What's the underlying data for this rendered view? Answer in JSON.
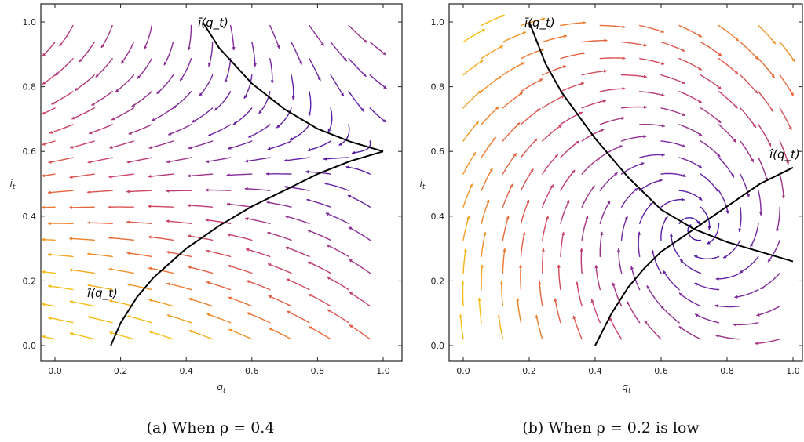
{
  "chart_data": [
    {
      "type": "streamplot",
      "caption": "(a) When ρ = 0.4",
      "xlabel": "q_t",
      "ylabel": "i_t",
      "xlim": [
        -0.05,
        1.02
      ],
      "ylim": [
        -0.06,
        1.05
      ],
      "xticks": [
        0.0,
        0.2,
        0.4,
        0.6,
        0.8,
        1.0
      ],
      "yticks": [
        0.0,
        0.2,
        0.4,
        0.6,
        0.8,
        1.0
      ],
      "tick_labels": [
        "0.0",
        "0.2",
        "0.4",
        "0.6",
        "0.8",
        "1.0"
      ],
      "steady_state": {
        "q": 1.0,
        "i": 0.6
      },
      "color_scale": "plasma (purple = slow, orange = fast)",
      "curves": [
        {
          "name": "ī(q_t)",
          "label_position": "top",
          "points": [
            [
              0.45,
              1.0
            ],
            [
              0.5,
              0.92
            ],
            [
              0.6,
              0.81
            ],
            [
              0.7,
              0.73
            ],
            [
              0.8,
              0.67
            ],
            [
              0.9,
              0.63
            ],
            [
              1.0,
              0.6
            ]
          ]
        },
        {
          "name": "î(q_t)",
          "label_position": "bottom-left",
          "points": [
            [
              0.17,
              0.0
            ],
            [
              0.2,
              0.07
            ],
            [
              0.25,
              0.15
            ],
            [
              0.3,
              0.21
            ],
            [
              0.4,
              0.3
            ],
            [
              0.5,
              0.37
            ],
            [
              0.6,
              0.43
            ],
            [
              0.7,
              0.48
            ],
            [
              0.8,
              0.53
            ],
            [
              0.9,
              0.57
            ],
            [
              1.0,
              0.6
            ]
          ]
        }
      ]
    },
    {
      "type": "streamplot",
      "caption": "(b) When ρ = 0.2 is low",
      "xlabel": "q_t",
      "ylabel": "i_t",
      "xlim": [
        -0.05,
        1.02
      ],
      "ylim": [
        -0.06,
        1.05
      ],
      "xticks": [
        0.0,
        0.2,
        0.4,
        0.6,
        0.8,
        1.0
      ],
      "yticks": [
        0.0,
        0.2,
        0.4,
        0.6,
        0.8,
        1.0
      ],
      "tick_labels": [
        "0.0",
        "0.2",
        "0.4",
        "0.6",
        "0.8",
        "1.0"
      ],
      "steady_state": {
        "q": 0.7,
        "i": 0.36
      },
      "color_scale": "plasma (purple = slow, orange = fast)",
      "curves": [
        {
          "name": "ī(q_t)",
          "label_position": "top",
          "points": [
            [
              0.2,
              1.0
            ],
            [
              0.25,
              0.87
            ],
            [
              0.3,
              0.78
            ],
            [
              0.4,
              0.64
            ],
            [
              0.5,
              0.52
            ],
            [
              0.6,
              0.42
            ],
            [
              0.7,
              0.36
            ],
            [
              0.8,
              0.32
            ],
            [
              0.9,
              0.29
            ],
            [
              1.0,
              0.26
            ]
          ]
        },
        {
          "name": "î(q_t)",
          "label_position": "right",
          "points": [
            [
              0.4,
              0.0
            ],
            [
              0.45,
              0.1
            ],
            [
              0.5,
              0.18
            ],
            [
              0.55,
              0.24
            ],
            [
              0.6,
              0.29
            ],
            [
              0.7,
              0.36
            ],
            [
              0.8,
              0.43
            ],
            [
              0.9,
              0.5
            ],
            [
              1.0,
              0.55
            ]
          ]
        }
      ]
    }
  ]
}
